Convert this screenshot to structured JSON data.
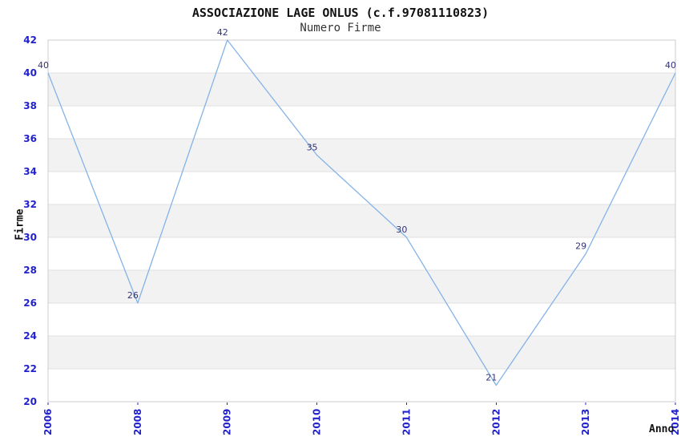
{
  "chart_data": {
    "type": "line",
    "title": "ASSOCIAZIONE LAGE ONLUS (c.f.97081110823)",
    "subtitle": "Numero Firme",
    "categories": [
      "2006",
      "2008",
      "2009",
      "2010",
      "2011",
      "2012",
      "2013",
      "2014"
    ],
    "series": [
      {
        "name": "Numero Firme",
        "values": [
          40,
          26,
          42,
          35,
          30,
          21,
          29,
          40
        ]
      }
    ],
    "xlabel": "Anno",
    "ylabel": "Firme",
    "ylim": [
      20,
      42
    ],
    "ytick_step": 2,
    "x_tick_rotation": -90,
    "grid": "horizontal",
    "banding": "alternating-horizontal",
    "legend": "none",
    "point_labels_visible": true,
    "colors": {
      "line": "#85b3e8",
      "tick_label": "#2222cc",
      "point_label": "#333377",
      "band": "#f2f2f2",
      "gridline": "#e0e0e0",
      "axis_border": "#cccccc",
      "background": "#ffffff"
    }
  }
}
